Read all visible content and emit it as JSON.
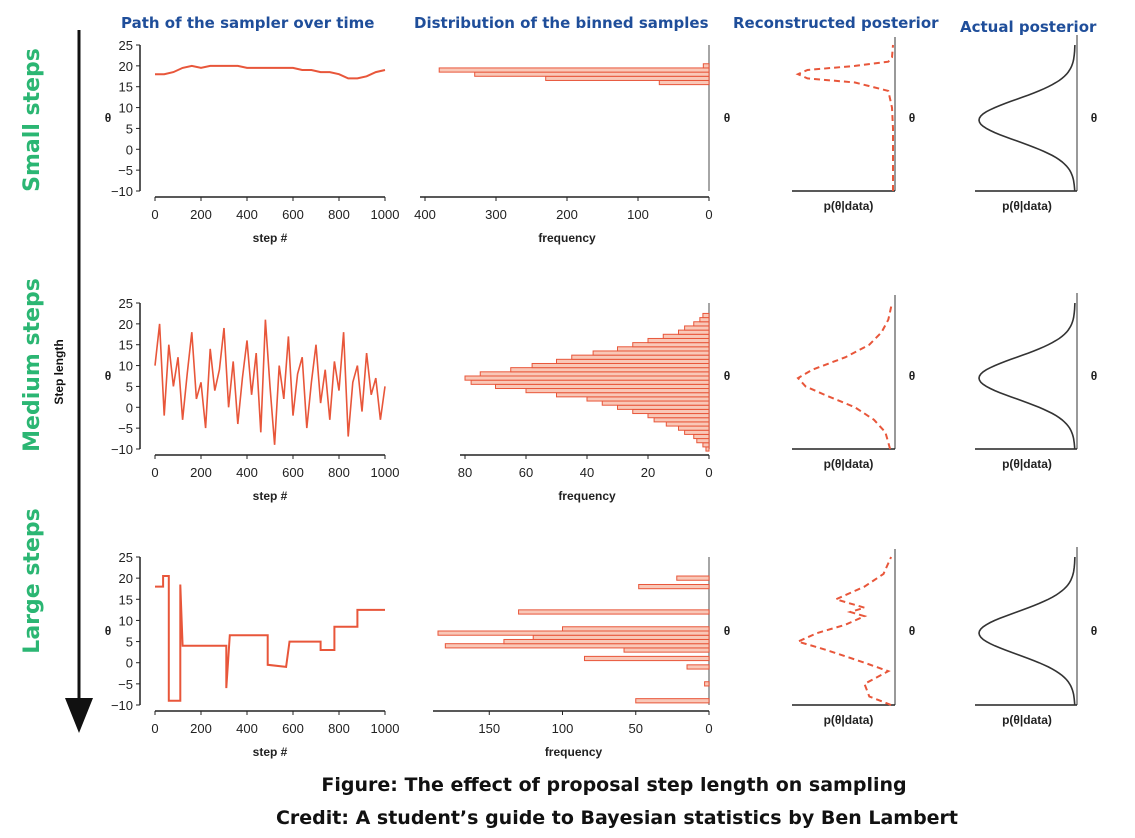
{
  "headers": {
    "path": "Path of the sampler over time",
    "hist": "Distribution of the binned samples",
    "recon": "Reconstructed posterior",
    "actual": "Actual posterior"
  },
  "row_labels": [
    "Small steps",
    "Medium steps",
    "Large steps"
  ],
  "arrow_label": "Step length",
  "caption": {
    "line1": "Figure: The effect of proposal step length on sampling",
    "line2": "Credit: A student’s guide to Bayesian statistics by Ben Lambert"
  },
  "colors": {
    "series": "#e8563a",
    "hist_fill": "#f9c8b8",
    "curve": "#333333",
    "axis": "#222222",
    "posterior_axis": "#999999"
  },
  "chart_data": [
    {
      "type": "line",
      "title": "Path of the sampler over time",
      "row": "Small steps",
      "xlabel": "step #",
      "ylabel": "θ",
      "xlim": [
        0,
        1000
      ],
      "ylim": [
        -10,
        25
      ],
      "xticks": [
        "0",
        "200",
        "400",
        "600",
        "800",
        "1000"
      ],
      "yticks": [
        "−10",
        "−5",
        "0",
        "5",
        "10",
        "15",
        "20",
        "25"
      ],
      "x": [
        0,
        40,
        80,
        120,
        160,
        200,
        240,
        280,
        320,
        360,
        400,
        440,
        480,
        520,
        560,
        600,
        640,
        680,
        720,
        760,
        800,
        840,
        880,
        920,
        960,
        1000
      ],
      "y": [
        18,
        18,
        18.5,
        19.5,
        20,
        19.5,
        20,
        20,
        20,
        20,
        19.5,
        19.5,
        19.5,
        19.5,
        19.5,
        19.5,
        19,
        19,
        18.5,
        18.5,
        18,
        17,
        17,
        17.5,
        18.5,
        19
      ]
    },
    {
      "type": "bar",
      "title": "Distribution of the binned samples",
      "row": "Small steps",
      "orientation": "horizontal",
      "xlabel": "frequency",
      "ylabel": "θ",
      "xlim": [
        400,
        0
      ],
      "ylim": [
        -10,
        25
      ],
      "xticks": [
        "400",
        "300",
        "200",
        "100",
        "0"
      ],
      "bins": [
        16,
        17,
        18,
        19,
        20
      ],
      "values": [
        70,
        230,
        330,
        380,
        8
      ]
    },
    {
      "type": "line",
      "title": "Reconstructed posterior",
      "row": "Small steps",
      "xlabel": "p(θ|data)",
      "ylabel": "θ",
      "theta": [
        -10,
        -5,
        0,
        5,
        10,
        14,
        16,
        17,
        18,
        19,
        20,
        21,
        22,
        25
      ],
      "density": [
        0,
        0,
        0,
        0,
        0.01,
        0.05,
        0.4,
        0.9,
        1,
        0.9,
        0.4,
        0.05,
        0.01,
        0
      ]
    },
    {
      "type": "line",
      "title": "Actual posterior",
      "row": "Small steps",
      "xlabel": "p(θ|data)",
      "ylabel": "θ",
      "distribution": "normal",
      "mean": 7,
      "sd": 5
    },
    {
      "type": "line",
      "title": "Path of the sampler over time",
      "row": "Medium steps",
      "xlabel": "step #",
      "ylabel": "θ",
      "xlim": [
        0,
        1000
      ],
      "ylim": [
        -10,
        25
      ],
      "xticks": [
        "0",
        "200",
        "400",
        "600",
        "800",
        "1000"
      ],
      "yticks": [
        "−10",
        "−5",
        "0",
        "5",
        "10",
        "15",
        "20",
        "25"
      ],
      "x": [
        0,
        20,
        40,
        60,
        80,
        100,
        120,
        140,
        160,
        180,
        200,
        220,
        240,
        260,
        280,
        300,
        320,
        340,
        360,
        380,
        400,
        420,
        440,
        460,
        480,
        500,
        520,
        540,
        560,
        580,
        600,
        620,
        640,
        660,
        680,
        700,
        720,
        740,
        760,
        780,
        800,
        820,
        840,
        860,
        880,
        900,
        920,
        940,
        960,
        980,
        1000
      ],
      "y": [
        10,
        20,
        -2,
        15,
        5,
        12,
        -3,
        8,
        18,
        2,
        6,
        -5,
        14,
        4,
        9,
        19,
        0,
        11,
        -4,
        7,
        16,
        3,
        13,
        -6,
        21,
        5,
        -9,
        10,
        2,
        17,
        -2,
        8,
        12,
        -5,
        6,
        15,
        1,
        9,
        -3,
        11,
        4,
        18,
        -7,
        6,
        10,
        -1,
        13,
        3,
        7,
        -3,
        5
      ]
    },
    {
      "type": "bar",
      "title": "Distribution of the binned samples",
      "row": "Medium steps",
      "orientation": "horizontal",
      "xlabel": "frequency",
      "ylabel": "θ",
      "xlim": [
        80,
        0
      ],
      "ylim": [
        -10,
        25
      ],
      "xticks": [
        "80",
        "60",
        "40",
        "20",
        "0"
      ],
      "bins": [
        -10,
        -9,
        -8,
        -7,
        -6,
        -5,
        -4,
        -3,
        -2,
        -1,
        0,
        1,
        2,
        3,
        4,
        5,
        6,
        7,
        8,
        9,
        10,
        11,
        12,
        13,
        14,
        15,
        16,
        17,
        18,
        19,
        20,
        21,
        22
      ],
      "values": [
        1,
        2,
        4,
        5,
        8,
        10,
        14,
        18,
        20,
        25,
        30,
        35,
        40,
        50,
        60,
        70,
        78,
        80,
        75,
        65,
        58,
        50,
        45,
        38,
        30,
        25,
        20,
        15,
        10,
        8,
        5,
        3,
        2
      ]
    },
    {
      "type": "line",
      "title": "Reconstructed posterior",
      "row": "Medium steps",
      "xlabel": "p(θ|data)",
      "ylabel": "θ",
      "theta": [
        -10,
        -6,
        -3,
        0,
        3,
        5,
        7,
        9,
        12,
        15,
        18,
        21,
        25
      ],
      "density": [
        0.03,
        0.08,
        0.2,
        0.4,
        0.72,
        0.92,
        1,
        0.85,
        0.5,
        0.25,
        0.12,
        0.05,
        0.01
      ]
    },
    {
      "type": "line",
      "title": "Actual posterior",
      "row": "Medium steps",
      "xlabel": "p(θ|data)",
      "ylabel": "θ",
      "distribution": "normal",
      "mean": 7,
      "sd": 5
    },
    {
      "type": "line",
      "title": "Path of the sampler over time",
      "row": "Large steps",
      "xlabel": "step #",
      "ylabel": "θ",
      "xlim": [
        0,
        1000
      ],
      "ylim": [
        -10,
        25
      ],
      "xticks": [
        "0",
        "200",
        "400",
        "600",
        "800",
        "1000"
      ],
      "yticks": [
        "−10",
        "−5",
        "0",
        "5",
        "10",
        "15",
        "20",
        "25"
      ],
      "x": [
        0,
        35,
        35,
        60,
        60,
        110,
        110,
        120,
        120,
        310,
        310,
        325,
        325,
        490,
        490,
        570,
        570,
        585,
        585,
        720,
        720,
        780,
        780,
        880,
        880,
        1000
      ],
      "y": [
        18,
        18,
        20.5,
        20.5,
        -9,
        -9,
        18.5,
        4,
        4,
        4,
        -6,
        6.5,
        6.5,
        6.5,
        -0.5,
        -1,
        -1,
        5,
        5,
        5,
        3,
        3,
        8.5,
        8.5,
        12.5,
        12.5
      ]
    },
    {
      "type": "bar",
      "title": "Distribution of the binned samples",
      "row": "Large steps",
      "orientation": "horizontal",
      "xlabel": "frequency",
      "ylabel": "θ",
      "xlim": [
        185,
        0
      ],
      "ylim": [
        -10,
        25
      ],
      "xticks": [
        "150",
        "100",
        "50",
        "0"
      ],
      "bins": [
        -9,
        -5,
        -1,
        1,
        3,
        4,
        5,
        6,
        7,
        8,
        12,
        18,
        20
      ],
      "values": [
        50,
        3,
        15,
        85,
        58,
        180,
        140,
        120,
        185,
        100,
        130,
        48,
        22
      ]
    },
    {
      "type": "line",
      "title": "Reconstructed posterior",
      "row": "Large steps",
      "xlabel": "p(θ|data)",
      "ylabel": "θ",
      "theta": [
        -10,
        -8,
        -5,
        -2,
        0,
        3,
        5,
        7,
        9,
        11,
        12,
        13,
        15,
        18,
        21,
        25
      ],
      "density": [
        0.02,
        0.25,
        0.3,
        0.05,
        0.3,
        0.7,
        1,
        0.8,
        0.5,
        0.3,
        0.45,
        0.3,
        0.6,
        0.3,
        0.1,
        0.02
      ]
    },
    {
      "type": "line",
      "title": "Actual posterior",
      "row": "Large steps",
      "xlabel": "p(θ|data)",
      "ylabel": "θ",
      "distribution": "normal",
      "mean": 7,
      "sd": 5
    }
  ]
}
